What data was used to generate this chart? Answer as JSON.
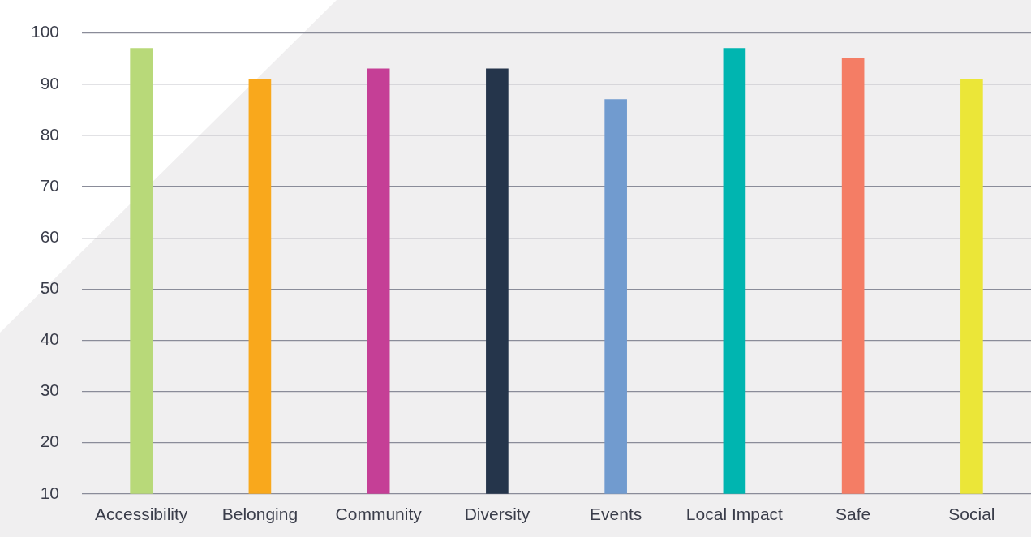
{
  "chart_data": {
    "type": "bar",
    "categories": [
      "Accessibility",
      "Belonging",
      "Community",
      "Diversity",
      "Events",
      "Local Impact",
      "Safe",
      "Social"
    ],
    "values": [
      97,
      91,
      93,
      93,
      87,
      97,
      95,
      91
    ],
    "colors": [
      "#b8d979",
      "#f9a81c",
      "#c53f96",
      "#25354b",
      "#719bcf",
      "#00b5b0",
      "#f47d65",
      "#ebe638"
    ],
    "ylim": [
      10,
      100
    ],
    "yticks": [
      10,
      20,
      30,
      40,
      50,
      60,
      70,
      80,
      90,
      100
    ],
    "grid": "y",
    "legend": false
  }
}
